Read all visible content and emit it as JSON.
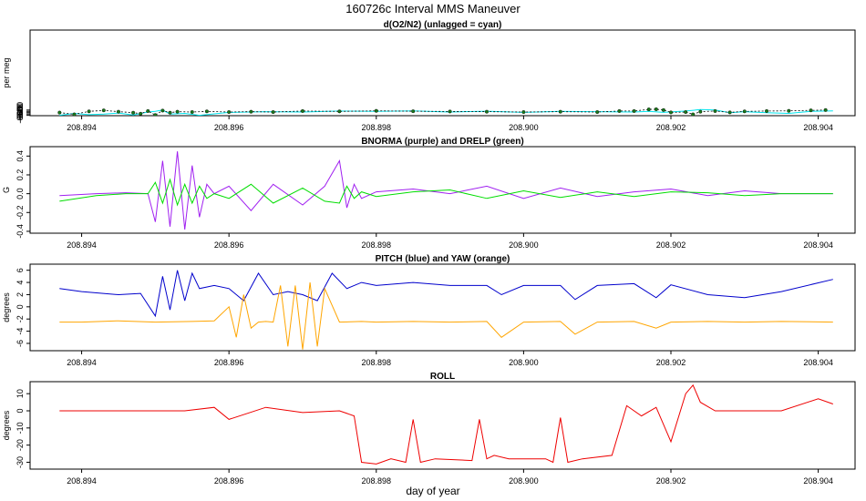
{
  "page": {
    "title": "160726c   Interval MMS Maneuver",
    "xlabel": "day of year"
  },
  "chart_data": [
    {
      "type": "line",
      "title": "d(O2/N2) (unlagged = cyan)",
      "ylabel": "per meg",
      "xlim": [
        208.8933,
        208.9045
      ],
      "ylim": [
        -685,
        608
      ],
      "xticks": [
        "208.894",
        "208.896",
        "208.898",
        "208.900",
        "208.902",
        "208.904"
      ],
      "yticks": [
        "-600",
        "-620",
        "-640",
        "-660",
        "-680"
      ],
      "series": [
        {
          "color": "#00e5ee",
          "style": "line",
          "x": [
            208.8937,
            208.8939,
            208.8941,
            208.8943,
            208.8945,
            208.8947,
            208.8949,
            208.895,
            208.8951,
            208.8952,
            208.8954,
            208.8956,
            208.896,
            208.8965,
            208.897,
            208.8975,
            208.898,
            208.8985,
            208.899,
            208.8995,
            208.9,
            208.9005,
            208.901,
            208.9015,
            208.9017,
            208.9019,
            208.9022,
            208.9024,
            208.9026,
            208.9028,
            208.903,
            208.9033,
            208.9036,
            208.9039,
            208.9042
          ],
          "y": [
            -680,
            -650,
            -670,
            -660,
            -645,
            -675,
            -630,
            -620,
            -600,
            -660,
            -650,
            -680,
            -635,
            -625,
            -630,
            -615,
            -620,
            -612,
            -630,
            -618,
            -635,
            -620,
            -625,
            -630,
            -620,
            -635,
            -615,
            -593,
            -598,
            -640,
            -625,
            -640,
            -650,
            -620,
            -612
          ]
        },
        {
          "color": "#000000",
          "style": "dots",
          "dotFill": "#1a7a1a",
          "x": [
            208.8937,
            208.8939,
            208.8941,
            208.8943,
            208.8945,
            208.8947,
            208.8948,
            208.8949,
            208.895,
            208.8951,
            208.8952,
            208.8953,
            208.8955,
            208.8957,
            208.896,
            208.8963,
            208.8966,
            208.897,
            208.8975,
            208.898,
            208.8985,
            208.899,
            208.8995,
            208.9,
            208.9005,
            208.901,
            208.9013,
            208.9015,
            208.9017,
            208.9018,
            208.9019,
            208.902,
            208.9022,
            208.9023,
            208.9024,
            208.9026,
            208.9028,
            208.903,
            208.9033,
            208.9036,
            208.9039,
            208.9041
          ],
          "y": [
            -638,
            -665,
            -620,
            -605,
            -625,
            -640,
            -655,
            -615,
            -675,
            -608,
            -640,
            -625,
            -630,
            -620,
            -630,
            -625,
            -630,
            -615,
            -620,
            -612,
            -618,
            -622,
            -625,
            -630,
            -625,
            -630,
            -615,
            -615,
            -590,
            -588,
            -600,
            -635,
            -630,
            -665,
            -625,
            -615,
            -635,
            -620,
            -615,
            -612,
            -605,
            -600
          ]
        }
      ]
    },
    {
      "type": "line",
      "title": "BNORMA (purple) and DRELP (green)",
      "ylabel": "G",
      "xlim": [
        208.8933,
        208.9045
      ],
      "ylim": [
        -0.42,
        0.5
      ],
      "xticks": [
        "208.894",
        "208.896",
        "208.898",
        "208.900",
        "208.902",
        "208.904"
      ],
      "yticks": [
        "0.4",
        "0.2",
        "0.0",
        "-0.2",
        "-0.4"
      ],
      "series": [
        {
          "color": "#a020f0",
          "style": "line",
          "x": [
            208.8937,
            208.8942,
            208.8946,
            208.8949,
            208.895,
            208.8951,
            208.8952,
            208.8953,
            208.8954,
            208.8955,
            208.8956,
            208.8957,
            208.8958,
            208.896,
            208.8963,
            208.8966,
            208.897,
            208.8973,
            208.8975,
            208.8976,
            208.8977,
            208.8978,
            208.898,
            208.8985,
            208.899,
            208.8995,
            208.9,
            208.9005,
            208.901,
            208.9015,
            208.902,
            208.9025,
            208.903,
            208.9035,
            208.9042
          ],
          "y": [
            -0.02,
            0.0,
            0.01,
            0.0,
            -0.3,
            0.35,
            -0.35,
            0.45,
            -0.38,
            0.3,
            -0.25,
            0.1,
            0.0,
            0.08,
            -0.18,
            0.1,
            -0.12,
            0.08,
            0.35,
            -0.15,
            0.1,
            -0.05,
            0.02,
            0.05,
            0.0,
            0.08,
            -0.05,
            0.06,
            -0.03,
            0.02,
            0.05,
            -0.02,
            0.03,
            0.0,
            0.0
          ]
        },
        {
          "color": "#00dd00",
          "style": "line",
          "x": [
            208.8937,
            208.8942,
            208.8946,
            208.8949,
            208.895,
            208.8951,
            208.8952,
            208.8953,
            208.8954,
            208.8955,
            208.8956,
            208.8957,
            208.8958,
            208.896,
            208.8963,
            208.8966,
            208.897,
            208.8973,
            208.8975,
            208.8976,
            208.8977,
            208.8978,
            208.898,
            208.8985,
            208.899,
            208.8995,
            208.9,
            208.9005,
            208.901,
            208.9015,
            208.902,
            208.9025,
            208.903,
            208.9035,
            208.9042
          ],
          "y": [
            -0.08,
            -0.02,
            0.0,
            0.0,
            0.12,
            -0.1,
            0.15,
            -0.12,
            0.1,
            -0.1,
            0.08,
            -0.05,
            0.0,
            -0.05,
            0.1,
            -0.1,
            0.06,
            -0.08,
            -0.1,
            0.08,
            -0.05,
            0.02,
            -0.03,
            0.02,
            0.04,
            -0.05,
            0.03,
            -0.04,
            0.02,
            -0.03,
            0.02,
            0.01,
            -0.02,
            0.0,
            0.0
          ]
        }
      ]
    },
    {
      "type": "line",
      "title": "PITCH (blue) and YAW (orange)",
      "ylabel": "degrees",
      "xlim": [
        208.8933,
        208.9045
      ],
      "ylim": [
        -7.2,
        7.0
      ],
      "xticks": [
        "208.894",
        "208.896",
        "208.898",
        "208.900",
        "208.902",
        "208.904"
      ],
      "yticks": [
        "6",
        "4",
        "2",
        "0",
        "-2",
        "-4",
        "-6"
      ],
      "series": [
        {
          "color": "#0000cc",
          "style": "line",
          "x": [
            208.8937,
            208.894,
            208.8945,
            208.8948,
            208.895,
            208.8951,
            208.8952,
            208.8953,
            208.8954,
            208.8955,
            208.8956,
            208.8958,
            208.896,
            208.8962,
            208.8964,
            208.8966,
            208.8968,
            208.897,
            208.8972,
            208.8974,
            208.8976,
            208.8978,
            208.898,
            208.8985,
            208.899,
            208.8995,
            208.8997,
            208.9,
            208.9005,
            208.9007,
            208.901,
            208.9015,
            208.9018,
            208.902,
            208.9025,
            208.903,
            208.9035,
            208.9042
          ],
          "y": [
            3.0,
            2.5,
            2.0,
            2.2,
            -1.5,
            5.0,
            -0.5,
            6.0,
            1.0,
            5.5,
            3.0,
            3.5,
            3.0,
            1.0,
            5.5,
            2.0,
            2.5,
            2.0,
            1.0,
            5.5,
            3.0,
            4.0,
            3.5,
            4.0,
            3.5,
            3.5,
            2.0,
            3.5,
            3.5,
            1.2,
            3.5,
            3.8,
            1.5,
            3.6,
            2.0,
            1.5,
            2.5,
            4.5
          ]
        },
        {
          "color": "#ffa500",
          "style": "line",
          "x": [
            208.8937,
            208.894,
            208.8945,
            208.895,
            208.8955,
            208.8958,
            208.896,
            208.8961,
            208.8962,
            208.8963,
            208.8964,
            208.8965,
            208.8966,
            208.8967,
            208.8968,
            208.8969,
            208.897,
            208.8971,
            208.8972,
            208.8973,
            208.8975,
            208.8978,
            208.898,
            208.8985,
            208.899,
            208.8995,
            208.8997,
            208.9,
            208.9005,
            208.9007,
            208.901,
            208.9015,
            208.9018,
            208.902,
            208.9025,
            208.903,
            208.9035,
            208.9042
          ],
          "y": [
            -2.5,
            -2.5,
            -2.3,
            -2.5,
            -2.4,
            -2.3,
            0.0,
            -5.0,
            2.0,
            -3.5,
            -2.5,
            -2.4,
            -2.5,
            3.5,
            -6.5,
            3.5,
            -7.0,
            4.0,
            -6.5,
            3.0,
            -2.5,
            -2.4,
            -2.5,
            -2.4,
            -2.5,
            -2.4,
            -5.0,
            -2.5,
            -2.4,
            -4.5,
            -2.5,
            -2.4,
            -3.5,
            -2.5,
            -2.4,
            -2.5,
            -2.4,
            -2.5
          ]
        }
      ]
    },
    {
      "type": "line",
      "title": "ROLL",
      "ylabel": "degrees",
      "xlim": [
        208.8933,
        208.9045
      ],
      "ylim": [
        -34,
        17
      ],
      "xticks": [
        "208.894",
        "208.896",
        "208.898",
        "208.900",
        "208.902",
        "208.904"
      ],
      "yticks": [
        "10",
        "0",
        "-10",
        "-20",
        "-30"
      ],
      "series": [
        {
          "color": "#ee0000",
          "style": "line",
          "x": [
            208.8937,
            208.8942,
            208.8948,
            208.8954,
            208.8958,
            208.896,
            208.8965,
            208.897,
            208.8975,
            208.8977,
            208.8978,
            208.898,
            208.8982,
            208.8984,
            208.8985,
            208.8986,
            208.8988,
            208.8993,
            208.8994,
            208.8995,
            208.8996,
            208.8998,
            208.9003,
            208.9004,
            208.9005,
            208.9006,
            208.9008,
            208.9012,
            208.9014,
            208.9016,
            208.9018,
            208.902,
            208.9022,
            208.9023,
            208.9024,
            208.9026,
            208.903,
            208.9035,
            208.904,
            208.9042
          ],
          "y": [
            0,
            0,
            0,
            0,
            2,
            -5,
            2,
            -1,
            0,
            -3,
            -30,
            -31,
            -28,
            -30,
            -5,
            -30,
            -28,
            -29,
            -5,
            -28,
            -26,
            -28,
            -28,
            -30,
            -4,
            -30,
            -28,
            -26,
            3,
            -3,
            2,
            -18,
            10,
            15,
            5,
            0,
            0,
            0,
            7,
            4
          ]
        }
      ]
    }
  ]
}
